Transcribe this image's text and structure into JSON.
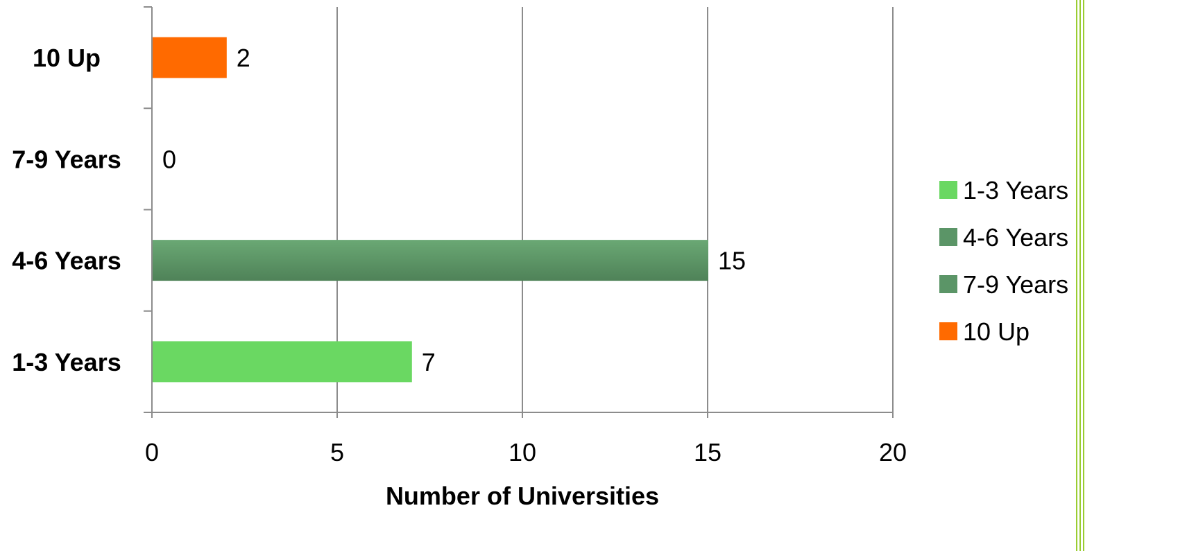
{
  "chart_data": {
    "type": "bar",
    "orientation": "horizontal",
    "categories": [
      "1-3 Years",
      "4-6 Years",
      "7-9 Years",
      "10 Up"
    ],
    "values": [
      7,
      15,
      0,
      2
    ],
    "bar_colors": [
      "#6ad862",
      "#5b9567",
      "#5b9567",
      "#ff6a00"
    ],
    "title": "",
    "xlabel": "Number of Universities",
    "ylabel": "",
    "xlim": [
      0,
      20
    ],
    "xticks": [
      0,
      5,
      10,
      15,
      20
    ],
    "xtick_labels": [
      "0",
      "5",
      "10",
      "15",
      "20"
    ],
    "data_labels": [
      "7",
      "15",
      "0",
      "2"
    ],
    "grid": true,
    "legend": {
      "position": "right",
      "entries": [
        {
          "label": "1-3 Years",
          "color": "#6ad862"
        },
        {
          "label": "4-6 Years",
          "color": "#5b9567"
        },
        {
          "label": "7-9 Years",
          "color": "#5b9567"
        },
        {
          "label": "10 Up",
          "color": "#ff6a00"
        }
      ]
    }
  }
}
